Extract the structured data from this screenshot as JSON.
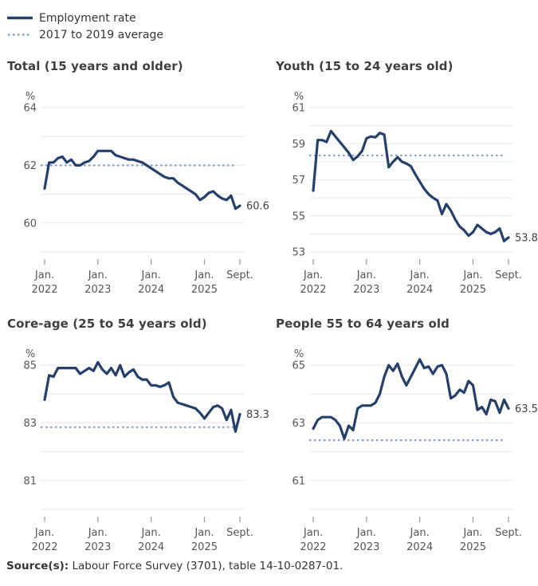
{
  "legend": {
    "items": [
      {
        "label": "Employment rate",
        "style": "solid"
      },
      {
        "label": "2017 to 2019 average",
        "style": "dotted"
      }
    ]
  },
  "colors": {
    "series_line": "#24406b",
    "average_line": "#7f9fd5",
    "gridline": "#e8e8e8",
    "axis_text": "#555555",
    "tick_mark": "#999999",
    "title_text": "#3f3f3f",
    "end_label_text": "#3f3f3f"
  },
  "charts_shared": {
    "n_points": 45,
    "x_start": "Jan. 2022",
    "x_end": "Sept. 2025",
    "x_frequency": "monthly",
    "x_ticks": [
      {
        "index": 0,
        "lines": [
          "Jan.",
          "2022"
        ]
      },
      {
        "index": 12,
        "lines": [
          "Jan.",
          "2023"
        ]
      },
      {
        "index": 24,
        "lines": [
          "Jan.",
          "2024"
        ]
      },
      {
        "index": 36,
        "lines": [
          "Jan.",
          "2025"
        ]
      },
      {
        "index": 44,
        "lines": [
          "Sept."
        ]
      }
    ],
    "unit_label": "%"
  },
  "chart_data": [
    {
      "type": "line",
      "title": "Total (15 years and older)",
      "ylabel": "%",
      "grid": "horizontal",
      "ylim": [
        59,
        64
      ],
      "yticks_labeled": [
        64,
        62,
        60
      ],
      "y_gridlines": [
        64,
        63,
        62,
        61,
        60,
        59
      ],
      "average_2017_2019": 62.0,
      "end_label": "60.6",
      "series_name": "Employment rate",
      "values": [
        61.2,
        62.1,
        62.1,
        62.25,
        62.3,
        62.1,
        62.2,
        62.0,
        62.0,
        62.1,
        62.15,
        62.3,
        62.5,
        62.5,
        62.5,
        62.5,
        62.35,
        62.3,
        62.25,
        62.2,
        62.2,
        62.15,
        62.1,
        62.0,
        61.9,
        61.8,
        61.7,
        61.6,
        61.55,
        61.55,
        61.4,
        61.3,
        61.2,
        61.1,
        61.0,
        60.8,
        60.9,
        61.05,
        61.1,
        60.95,
        60.85,
        60.8,
        60.95,
        60.5,
        60.6
      ]
    },
    {
      "type": "line",
      "title": "Youth (15 to 24 years old)",
      "ylabel": "%",
      "grid": "horizontal",
      "ylim": [
        53,
        61
      ],
      "yticks_labeled": [
        61,
        59,
        57,
        55,
        53
      ],
      "y_gridlines": [
        61,
        60,
        59,
        58,
        57,
        56,
        55,
        54,
        53
      ],
      "average_2017_2019": 58.35,
      "end_label": "53.8",
      "series_name": "Employment rate",
      "values": [
        56.4,
        59.2,
        59.2,
        59.1,
        59.7,
        59.4,
        59.1,
        58.8,
        58.5,
        58.1,
        58.3,
        58.6,
        59.3,
        59.4,
        59.35,
        59.6,
        59.5,
        57.7,
        58.0,
        58.25,
        58.0,
        57.9,
        57.75,
        57.3,
        56.9,
        56.5,
        56.2,
        56.0,
        55.85,
        55.1,
        55.65,
        55.3,
        54.8,
        54.4,
        54.2,
        53.9,
        54.1,
        54.5,
        54.3,
        54.1,
        54.0,
        54.1,
        54.3,
        53.6,
        53.8
      ]
    },
    {
      "type": "line",
      "title": "Core-age (25 to 54 years old)",
      "ylabel": "%",
      "grid": "horizontal",
      "ylim": [
        80,
        85
      ],
      "yticks_labeled": [
        85,
        83,
        81
      ],
      "y_gridlines": [
        85,
        84,
        83,
        82,
        81,
        80
      ],
      "average_2017_2019": 82.85,
      "end_label": "83.3",
      "series_name": "Employment rate",
      "values": [
        83.8,
        84.65,
        84.6,
        84.9,
        84.9,
        84.9,
        84.9,
        84.9,
        84.7,
        84.8,
        84.9,
        84.8,
        85.1,
        84.85,
        84.7,
        84.9,
        84.65,
        85.0,
        84.6,
        84.75,
        84.85,
        84.6,
        84.5,
        84.5,
        84.3,
        84.3,
        84.25,
        84.3,
        84.4,
        83.9,
        83.7,
        83.65,
        83.6,
        83.55,
        83.5,
        83.35,
        83.15,
        83.35,
        83.55,
        83.6,
        83.5,
        83.1,
        83.45,
        82.7,
        83.3
      ]
    },
    {
      "type": "line",
      "title": "People 55 to 64 years old",
      "ylabel": "%",
      "grid": "horizontal",
      "ylim": [
        60,
        65
      ],
      "yticks_labeled": [
        65,
        63,
        61
      ],
      "y_gridlines": [
        65,
        64,
        63,
        62,
        61,
        60
      ],
      "average_2017_2019": 62.4,
      "end_label": "63.5",
      "series_name": "Employment rate",
      "values": [
        62.8,
        63.1,
        63.2,
        63.2,
        63.2,
        63.1,
        62.9,
        62.45,
        62.9,
        62.75,
        63.5,
        63.6,
        63.6,
        63.6,
        63.7,
        64.0,
        64.6,
        65.0,
        64.8,
        65.05,
        64.6,
        64.3,
        64.6,
        64.9,
        65.2,
        64.9,
        64.95,
        64.7,
        64.95,
        65.0,
        64.7,
        63.85,
        63.95,
        64.15,
        64.05,
        64.45,
        64.3,
        63.45,
        63.55,
        63.3,
        63.8,
        63.75,
        63.35,
        63.8,
        63.5
      ]
    }
  ],
  "source": {
    "prefix": "Source(s):",
    "text": " Labour Force Survey (3701), table 14-10-0287-01."
  }
}
